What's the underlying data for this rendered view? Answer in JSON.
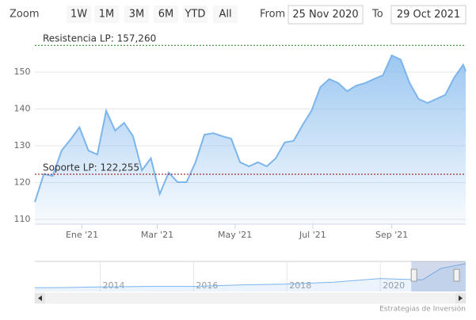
{
  "range_selector": {
    "label": "Zoom",
    "buttons": [
      "1W",
      "1M",
      "3M",
      "6M",
      "YTD",
      "All"
    ],
    "from_label": "From",
    "from": "25 Nov 2020",
    "to_label": "To",
    "to": "29 Oct 2021"
  },
  "chart_data": {
    "type": "area",
    "color": "#7cb5ec",
    "grid": true,
    "x": [
      "2020-11-25",
      "2020-12-02",
      "2020-12-09",
      "2020-12-16",
      "2020-12-23",
      "2020-12-30",
      "2021-01-06",
      "2021-01-13",
      "2021-01-20",
      "2021-01-27",
      "2021-02-03",
      "2021-02-10",
      "2021-02-17",
      "2021-02-24",
      "2021-03-03",
      "2021-03-10",
      "2021-03-17",
      "2021-03-24",
      "2021-03-31",
      "2021-04-07",
      "2021-04-14",
      "2021-04-21",
      "2021-04-28",
      "2021-05-05",
      "2021-05-12",
      "2021-05-19",
      "2021-05-26",
      "2021-06-02",
      "2021-06-09",
      "2021-06-16",
      "2021-06-23",
      "2021-06-30",
      "2021-07-07",
      "2021-07-14",
      "2021-07-21",
      "2021-07-28",
      "2021-08-04",
      "2021-08-11",
      "2021-08-18",
      "2021-08-25",
      "2021-09-01",
      "2021-09-08",
      "2021-09-15",
      "2021-09-22",
      "2021-09-29",
      "2021-10-06",
      "2021-10-13",
      "2021-10-20",
      "2021-10-27",
      "2021-10-29"
    ],
    "values": [
      114.7,
      122.3,
      121.8,
      128.7,
      131.7,
      135.0,
      128.7,
      127.6,
      139.5,
      134.1,
      136.2,
      132.6,
      123.3,
      126.6,
      116.9,
      122.7,
      120.1,
      120.1,
      125.5,
      133.0,
      133.4,
      132.6,
      131.9,
      125.5,
      124.4,
      125.5,
      124.4,
      126.6,
      130.9,
      131.3,
      135.6,
      139.5,
      145.9,
      148.1,
      147.0,
      144.8,
      146.3,
      147.0,
      148.1,
      149.1,
      154.5,
      153.4,
      147.0,
      142.7,
      141.6,
      142.7,
      143.8,
      148.5,
      152.0,
      150.2
    ],
    "xlim": [
      "2020-11-25",
      "2021-10-29"
    ],
    "xticks": [
      {
        "value": "2021-01-01",
        "label": "Ene '21"
      },
      {
        "value": "2021-03-01",
        "label": "Mar '21"
      },
      {
        "value": "2021-05-01",
        "label": "May '21"
      },
      {
        "value": "2021-07-01",
        "label": "Jul '21"
      },
      {
        "value": "2021-09-01",
        "label": "Sep '21"
      }
    ],
    "ylim": [
      108.7,
      160.1
    ],
    "yticks": [
      110,
      120,
      130,
      140,
      150
    ],
    "plot_lines": [
      {
        "value": 157.26,
        "label": "Resistencia LP: 157,260",
        "color": "#1a7a1a"
      },
      {
        "value": 122.255,
        "label": "Soporte LP: 122,255",
        "color": "#8b0000"
      }
    ],
    "navigator": {
      "x": [
        2012.6,
        2013,
        2014,
        2015,
        2016,
        2017,
        2018,
        2019,
        2020,
        2020.9,
        2021.3,
        2021.83
      ],
      "values": [
        98,
        98,
        100,
        101,
        101,
        104,
        106,
        110,
        118,
        115,
        140,
        150
      ],
      "xlim": [
        2012.6,
        2021.83
      ],
      "ylim": [
        90,
        155
      ],
      "xticks": [
        2014,
        2016,
        2018,
        2020
      ]
    }
  },
  "credits": "Estrategias de Inversión"
}
